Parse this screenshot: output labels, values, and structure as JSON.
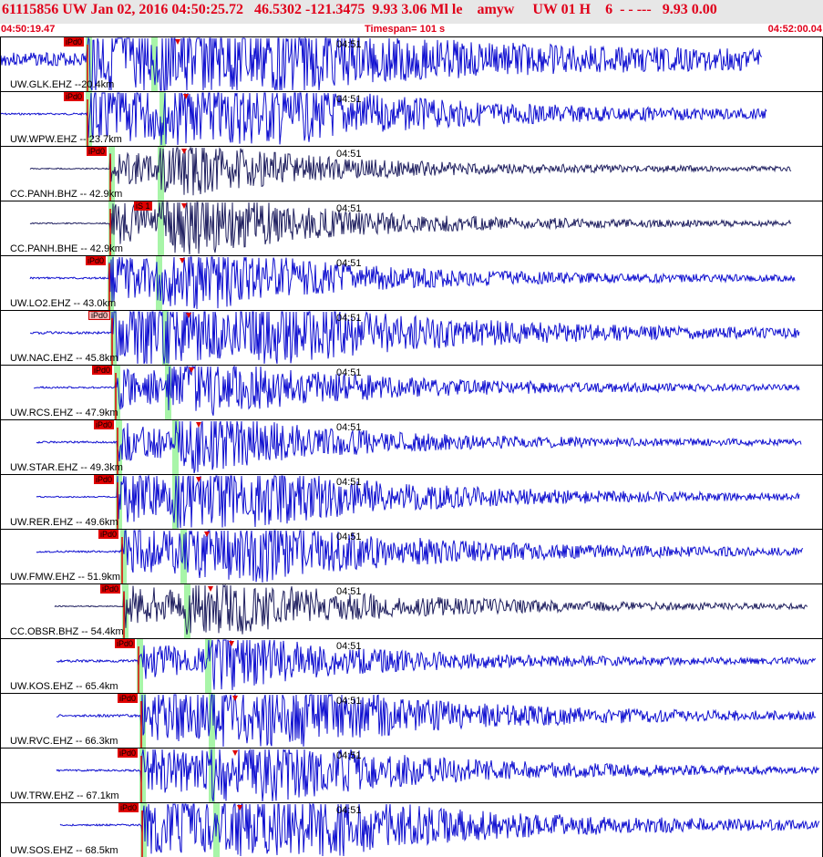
{
  "header": {
    "event_line": "61115856 UW Jan 02, 2016 04:50:25.72   46.5302 -121.3475  9.93 3.06 Ml le    amyw     UW 01 H    6  - - ---   9.93 0.00"
  },
  "timebar": {
    "start": "04:50:19.47",
    "span": "Timespan= 101 s",
    "end": "04:52:00.04"
  },
  "colors": {
    "uw_trace": "#1010d0",
    "cc_trace": "#202060",
    "pick_firm": "#e00000",
    "pick_soft": "#f5b5b5",
    "phase_band": "#a8f5a8",
    "header_text": "#e0001a"
  },
  "traces": [
    {
      "label": "UW.GLK.EHZ --20.4km",
      "minute": "04:51",
      "pick": "iPd0",
      "pick_style": "firm",
      "network": "UW",
      "seed": 3,
      "p_frac": 0.105,
      "s_frac": 0.185,
      "amp": 1.0,
      "end_frac": 0.925,
      "start_frac": 0.0,
      "noise": 0.22
    },
    {
      "label": "UW.WPW.EHZ -- 23.7km",
      "minute": "04:51",
      "pick": "iPd0",
      "pick_style": "firm",
      "network": "UW",
      "seed": 7,
      "p_frac": 0.105,
      "s_frac": 0.195,
      "amp": 1.0,
      "end_frac": 0.93,
      "start_frac": 0.0,
      "noise": 0.03
    },
    {
      "label": "CC.PANH.BHZ -- 42.9km",
      "minute": "04:51",
      "pick": "iPd0",
      "pick_style": "firm",
      "network": "CC",
      "seed": 11,
      "p_frac": 0.133,
      "s_frac": 0.193,
      "amp": 0.45,
      "end_frac": 0.96,
      "start_frac": 0.035,
      "noise": 0.02
    },
    {
      "label": "CC.PANH.BHE -- 42.9km",
      "minute": "04:51",
      "pick": "iS 1",
      "pick_style": "firm",
      "network": "CC",
      "seed": 13,
      "p_frac": 0.133,
      "s_frac": 0.193,
      "amp": 0.55,
      "end_frac": 0.96,
      "start_frac": 0.035,
      "noise": 0.02
    },
    {
      "label": "UW.LO2.EHZ -- 43.0km",
      "minute": "04:51",
      "pick": "iPd0",
      "pick_style": "firm",
      "network": "UW",
      "seed": 17,
      "p_frac": 0.132,
      "s_frac": 0.19,
      "amp": 0.6,
      "end_frac": 0.965,
      "start_frac": 0.035,
      "noise": 0.03
    },
    {
      "label": "UW.NAC.EHZ -- 45.8km",
      "minute": "04:51",
      "pick": "iPd0",
      "pick_style": "soft",
      "network": "UW",
      "seed": 19,
      "p_frac": 0.135,
      "s_frac": 0.198,
      "amp": 1.0,
      "end_frac": 0.97,
      "start_frac": 0.035,
      "noise": 0.04
    },
    {
      "label": "UW.RCS.EHZ -- 47.9km",
      "minute": "04:51",
      "pick": "iPd0",
      "pick_style": "firm",
      "network": "UW",
      "seed": 23,
      "p_frac": 0.14,
      "s_frac": 0.202,
      "amp": 0.55,
      "end_frac": 0.97,
      "start_frac": 0.04,
      "noise": 0.03
    },
    {
      "label": "UW.STAR.EHZ -- 49.3km",
      "minute": "04:51",
      "pick": "iPd0",
      "pick_style": "firm",
      "network": "UW",
      "seed": 29,
      "p_frac": 0.142,
      "s_frac": 0.21,
      "amp": 0.5,
      "end_frac": 0.972,
      "start_frac": 0.043,
      "noise": 0.03
    },
    {
      "label": "UW.RER.EHZ -- 49.6km",
      "minute": "04:51",
      "pick": "iPd0",
      "pick_style": "firm",
      "network": "UW",
      "seed": 31,
      "p_frac": 0.142,
      "s_frac": 0.21,
      "amp": 0.75,
      "end_frac": 0.97,
      "start_frac": 0.043,
      "noise": 0.02
    },
    {
      "label": "UW.FMW.EHZ -- 51.9km",
      "minute": "04:51",
      "pick": "iPd0",
      "pick_style": "firm",
      "network": "UW",
      "seed": 37,
      "p_frac": 0.147,
      "s_frac": 0.22,
      "amp": 0.75,
      "end_frac": 0.975,
      "start_frac": 0.043,
      "noise": 0.03
    },
    {
      "label": "CC.OBSR.BHZ -- 54.4km",
      "minute": "04:51",
      "pick": "iPd0",
      "pick_style": "firm",
      "network": "CC",
      "seed": 41,
      "p_frac": 0.15,
      "s_frac": 0.225,
      "amp": 0.55,
      "end_frac": 0.98,
      "start_frac": 0.065,
      "noise": 0.02
    },
    {
      "label": "UW.KOS.EHZ -- 65.4km",
      "minute": "04:51",
      "pick": "iPd0",
      "pick_style": "firm",
      "network": "UW",
      "seed": 43,
      "p_frac": 0.167,
      "s_frac": 0.25,
      "amp": 0.45,
      "end_frac": 0.99,
      "start_frac": 0.068,
      "noise": 0.04
    },
    {
      "label": "UW.RVC.EHZ -- 66.3km",
      "minute": "04:51",
      "pick": "iPd0",
      "pick_style": "firm",
      "network": "UW",
      "seed": 47,
      "p_frac": 0.17,
      "s_frac": 0.255,
      "amp": 0.8,
      "end_frac": 0.99,
      "start_frac": 0.068,
      "noise": 0.04
    },
    {
      "label": "UW.TRW.EHZ -- 67.1km",
      "minute": "04:51",
      "pick": "iPd0",
      "pick_style": "firm",
      "network": "UW",
      "seed": 53,
      "p_frac": 0.17,
      "s_frac": 0.255,
      "amp": 0.7,
      "end_frac": 0.995,
      "start_frac": 0.068,
      "noise": 0.03
    },
    {
      "label": "UW.SOS.EHZ -- 68.5km",
      "minute": "04:51",
      "pick": "iPd0",
      "pick_style": "firm",
      "network": "UW",
      "seed": 59,
      "p_frac": 0.172,
      "s_frac": 0.26,
      "amp": 1.0,
      "end_frac": 0.995,
      "start_frac": 0.072,
      "noise": 0.03
    }
  ]
}
